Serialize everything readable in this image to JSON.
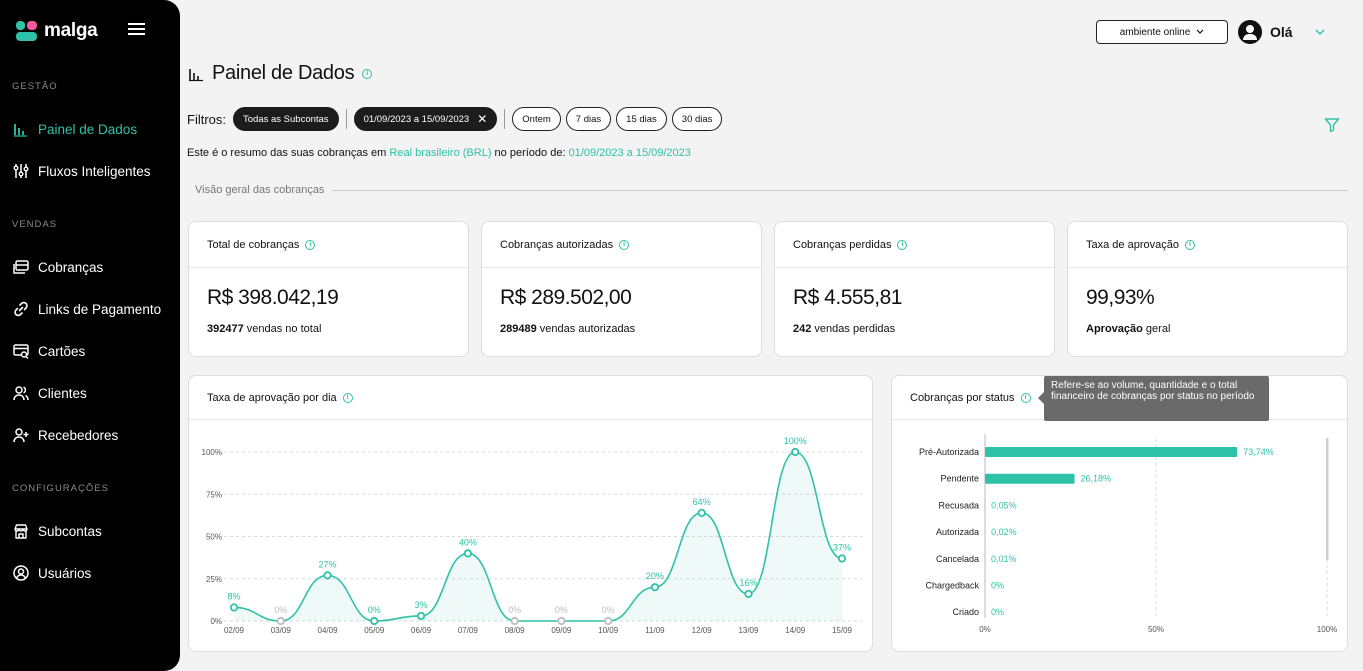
{
  "brand": {
    "name": "malga"
  },
  "sidebar": {
    "sections": [
      {
        "title": "GESTÃO",
        "items": [
          {
            "label": "Painel de Dados",
            "icon": "bar-chart-icon",
            "active": true
          },
          {
            "label": "Fluxos Inteligentes",
            "icon": "sliders-icon"
          }
        ]
      },
      {
        "title": "VENDAS",
        "items": [
          {
            "label": "Cobranças",
            "icon": "charges-icon"
          },
          {
            "label": "Links de Pagamento",
            "icon": "link-icon"
          },
          {
            "label": "Cartões",
            "icon": "card-search-icon"
          },
          {
            "label": "Clientes",
            "icon": "users-icon"
          },
          {
            "label": "Recebedores",
            "icon": "user-plus-icon"
          }
        ]
      },
      {
        "title": "CONFIGURAÇÕES",
        "items": [
          {
            "label": "Subcontas",
            "icon": "store-icon"
          },
          {
            "label": "Usuários",
            "icon": "user-circle-icon"
          }
        ]
      }
    ]
  },
  "header": {
    "environment": "ambiente online",
    "greeting": "Olá"
  },
  "page": {
    "title": "Painel de Dados"
  },
  "filters": {
    "label": "Filtros:",
    "subaccount": "Todas as Subcontas",
    "date_range": "01/09/2023 a 15/09/2023",
    "quick": [
      "Ontem",
      "7 dias",
      "15 dias",
      "30 dias"
    ]
  },
  "summary": {
    "prefix": "Este é o resumo das suas cobranças em",
    "currency": "Real brasileiro (BRL)",
    "middle": "no período de:",
    "period": "01/09/2023 a 15/09/2023"
  },
  "overview_title": "Visão geral das cobranças",
  "cards": [
    {
      "title": "Total de cobranças",
      "value": "R$ 398.042,19",
      "count": "392477",
      "sub": "vendas no total"
    },
    {
      "title": "Cobranças autorizadas",
      "value": "R$ 289.502,00",
      "count": "289489",
      "sub": "vendas autorizadas"
    },
    {
      "title": "Cobranças perdidas",
      "value": "R$ 4.555,81",
      "count": "242",
      "sub": "vendas perdidas"
    },
    {
      "title": "Taxa de aprovação",
      "value": "99,93%",
      "count": "Aprovação",
      "sub": "geral"
    }
  ],
  "tooltip": "Refere-se ao volume, quantidade e o total financeiro de cobranças por status no período",
  "colors": {
    "accent": "#2ec2a8",
    "muted": "#bdbdbd"
  },
  "chart_data": [
    {
      "type": "line",
      "title": "Taxa de aprovação por dia",
      "x": [
        "02/09",
        "03/09",
        "04/09",
        "05/09",
        "06/09",
        "07/09",
        "08/09",
        "09/09",
        "10/09",
        "11/09",
        "12/09",
        "13/09",
        "14/09",
        "15/09"
      ],
      "values": [
        8,
        0,
        27,
        0,
        3,
        40,
        0,
        0,
        0,
        20,
        64,
        16,
        100,
        37
      ],
      "labels": [
        "8%",
        "0%",
        "27%",
        "0%",
        "3%",
        "40%",
        "0%",
        "0%",
        "0%",
        "20%",
        "64%",
        "16%",
        "100%",
        "37%"
      ],
      "no_data": [
        false,
        true,
        false,
        false,
        false,
        false,
        true,
        true,
        true,
        false,
        false,
        false,
        false,
        false
      ],
      "yticks": [
        "0%",
        "25%",
        "50%",
        "75%",
        "100%"
      ],
      "ylim": [
        0,
        100
      ],
      "grid": true
    },
    {
      "type": "bar",
      "orientation": "horizontal",
      "title": "Cobranças por status",
      "categories": [
        "Pré-Autorizada",
        "Pendente",
        "Recusada",
        "Autorizada",
        "Cancelada",
        "Chargedback",
        "Criado"
      ],
      "values": [
        73.74,
        26.18,
        0.05,
        0.02,
        0.01,
        0,
        0
      ],
      "labels": [
        "73,74%",
        "26,18%",
        "0,05%",
        "0,02%",
        "0,01%",
        "0%",
        "0%"
      ],
      "xticks": [
        "0%",
        "50%",
        "100%"
      ],
      "xlim": [
        0,
        100
      ]
    }
  ]
}
